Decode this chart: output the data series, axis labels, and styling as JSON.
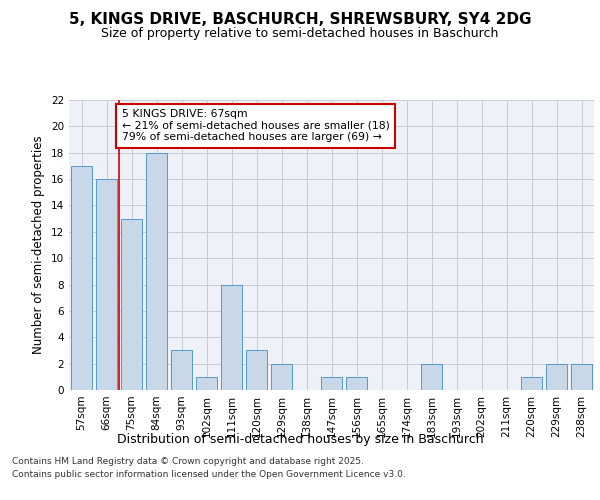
{
  "title1": "5, KINGS DRIVE, BASCHURCH, SHREWSBURY, SY4 2DG",
  "title2": "Size of property relative to semi-detached houses in Baschurch",
  "xlabel": "Distribution of semi-detached houses by size in Baschurch",
  "ylabel": "Number of semi-detached properties",
  "categories": [
    "57sqm",
    "66sqm",
    "75sqm",
    "84sqm",
    "93sqm",
    "102sqm",
    "111sqm",
    "120sqm",
    "129sqm",
    "138sqm",
    "147sqm",
    "156sqm",
    "165sqm",
    "174sqm",
    "183sqm",
    "193sqm",
    "202sqm",
    "211sqm",
    "220sqm",
    "229sqm",
    "238sqm"
  ],
  "values": [
    17,
    16,
    13,
    18,
    3,
    1,
    8,
    3,
    2,
    0,
    1,
    1,
    0,
    0,
    2,
    0,
    0,
    0,
    1,
    2,
    2
  ],
  "bar_color": "#c8d8e8",
  "bar_edge_color": "#5599cc",
  "vline_x": 1.5,
  "vline_color": "#cc0000",
  "annotation_title": "5 KINGS DRIVE: 67sqm",
  "annotation_line1": "← 21% of semi-detached houses are smaller (18)",
  "annotation_line2": "79% of semi-detached houses are larger (69) →",
  "annotation_box_color": "#ffffff",
  "annotation_box_edge": "#cc0000",
  "ylim": [
    0,
    22
  ],
  "yticks": [
    0,
    2,
    4,
    6,
    8,
    10,
    12,
    14,
    16,
    18,
    20,
    22
  ],
  "footer1": "Contains HM Land Registry data © Crown copyright and database right 2025.",
  "footer2": "Contains public sector information licensed under the Open Government Licence v3.0.",
  "bg_color": "#eef2f8",
  "grid_color": "#c8ccd8"
}
